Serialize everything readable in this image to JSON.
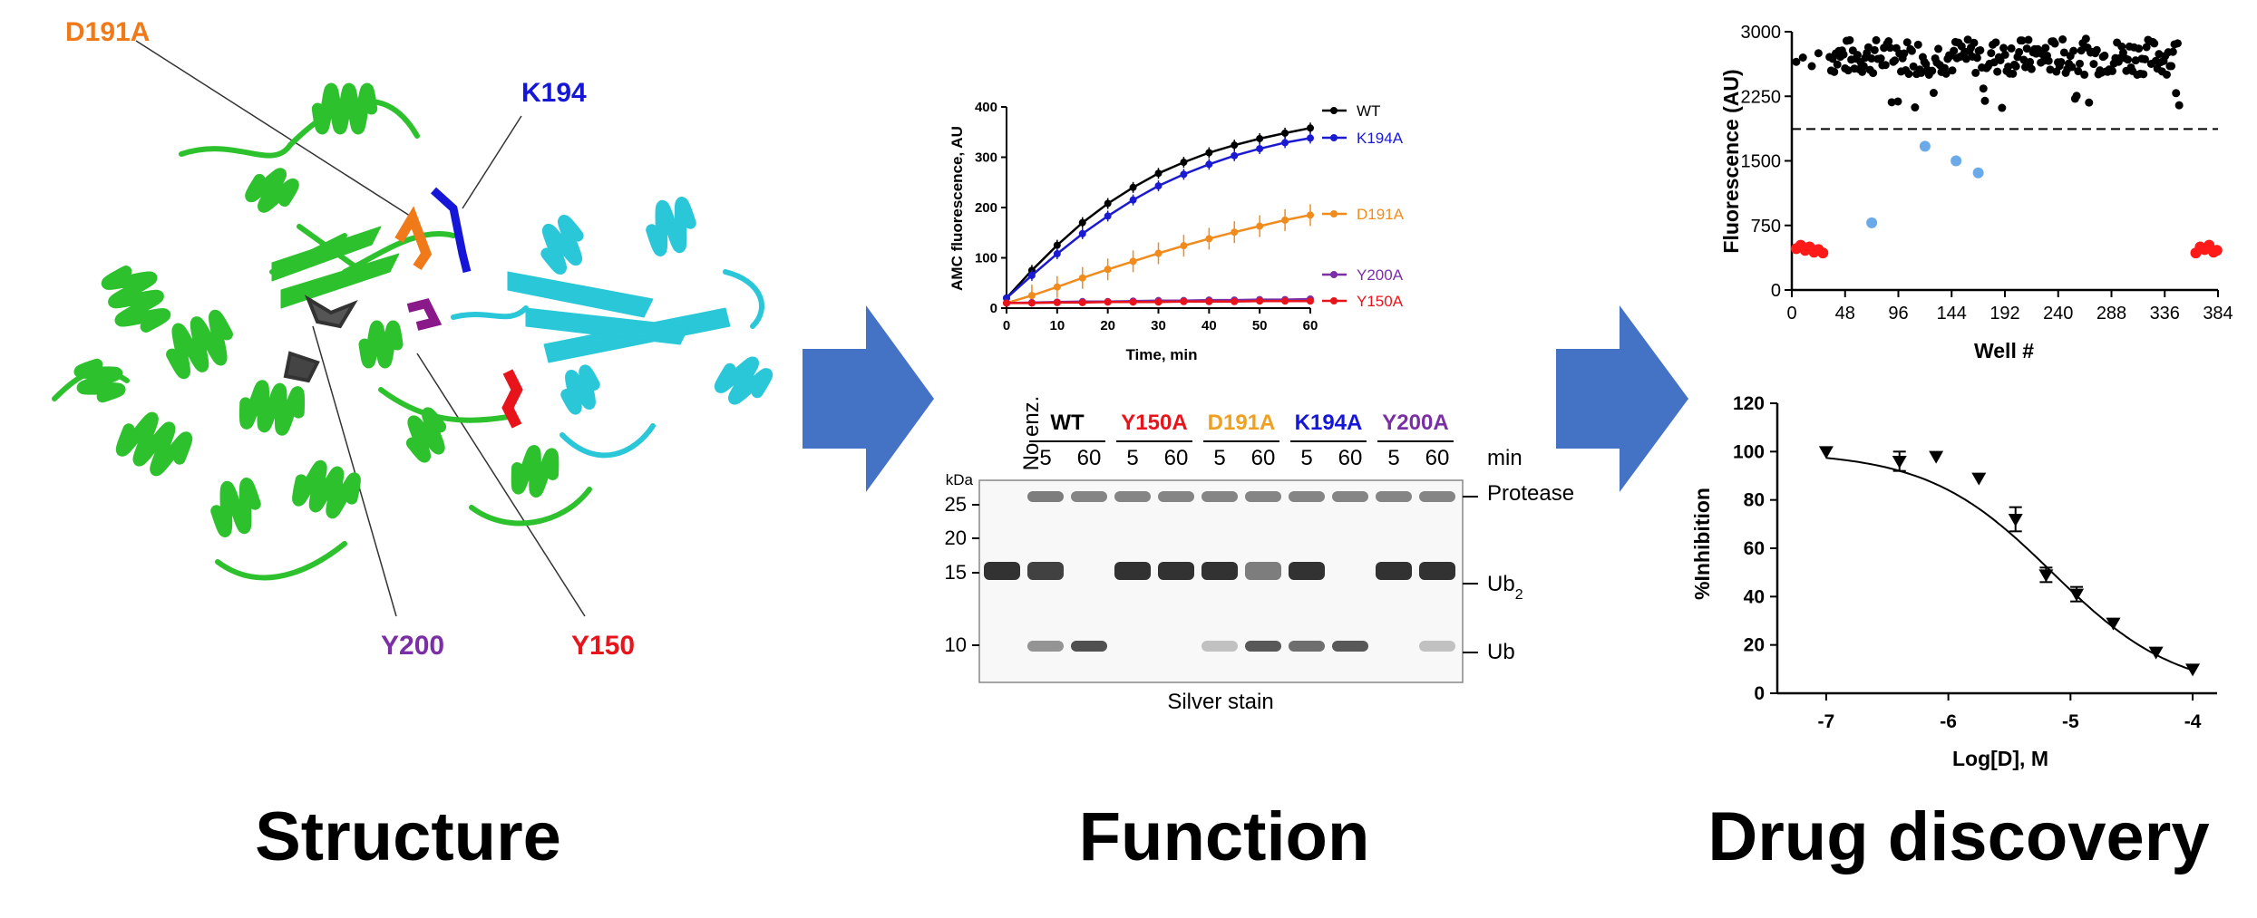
{
  "sections": {
    "structure": "Structure",
    "function": "Function",
    "drug": "Drug discovery"
  },
  "structure_panel": {
    "labels": [
      {
        "text": "D191A",
        "color": "#f07a1a"
      },
      {
        "text": "K194",
        "color": "#1616d8"
      },
      {
        "text": "Y200",
        "color": "#7b2fa6"
      },
      {
        "text": "Y150",
        "color": "#e8141c"
      }
    ],
    "ribbon_colors": {
      "domain_a": "#2ec12e",
      "domain_b": "#29c7d8"
    }
  },
  "arrow_color": "#4472c4",
  "gel": {
    "no_enzyme_label": "No enz.",
    "groups": [
      {
        "label": "WT",
        "color": "#000000"
      },
      {
        "label": "Y150A",
        "color": "#e8141c"
      },
      {
        "label": "D191A",
        "color": "#f0a020"
      },
      {
        "label": "K194A",
        "color": "#1616d8"
      },
      {
        "label": "Y200A",
        "color": "#7b2fa6"
      }
    ],
    "times": [
      "5",
      "60",
      "5",
      "60",
      "5",
      "60",
      "5",
      "60",
      "5",
      "60"
    ],
    "time_unit": "min",
    "kda_label": "kDa",
    "markers": [
      "25",
      "20",
      "15",
      "10"
    ],
    "bands": [
      "Protease",
      "Ub",
      "Ub"
    ],
    "band_subscript": "2",
    "caption": "Silver stain"
  },
  "chart_data": [
    {
      "type": "line",
      "xlabel": "Time, min",
      "ylabel": "AMC fluorescence, AU",
      "xlim": [
        0,
        60
      ],
      "ylim": [
        0,
        400
      ],
      "xticks": [
        "0",
        "10",
        "20",
        "30",
        "40",
        "50",
        "60"
      ],
      "yticks": [
        "0",
        "100",
        "200",
        "300",
        "400"
      ],
      "x": [
        0,
        5,
        10,
        15,
        20,
        25,
        30,
        35,
        40,
        45,
        50,
        55,
        60
      ],
      "series": [
        {
          "name": "WT",
          "color": "#000000",
          "values": [
            20,
            75,
            125,
            170,
            208,
            240,
            268,
            290,
            309,
            324,
            337,
            348,
            358
          ]
        },
        {
          "name": "K194A",
          "color": "#1a1ad0",
          "values": [
            20,
            65,
            108,
            148,
            183,
            215,
            243,
            266,
            286,
            303,
            317,
            329,
            338
          ]
        },
        {
          "name": "D191A",
          "color": "#f08c1e",
          "values": [
            10,
            25,
            42,
            60,
            77,
            93,
            109,
            124,
            138,
            151,
            163,
            175,
            185
          ]
        },
        {
          "name": "Y200A",
          "color": "#7b2fa6",
          "values": [
            10,
            11,
            12,
            13,
            13,
            14,
            15,
            15,
            16,
            16,
            17,
            17,
            18
          ]
        },
        {
          "name": "Y150A",
          "color": "#e8141c",
          "values": [
            10,
            10,
            11,
            11,
            12,
            12,
            12,
            13,
            13,
            13,
            14,
            14,
            14
          ]
        }
      ]
    },
    {
      "type": "scatter",
      "xlabel": "Well #",
      "ylabel": "Fluorescence (AU)",
      "xlim": [
        0,
        384
      ],
      "ylim": [
        0,
        3000
      ],
      "xticks": [
        "0",
        "48",
        "96",
        "144",
        "192",
        "240",
        "288",
        "336",
        "384"
      ],
      "yticks": [
        "0",
        "750",
        "1500",
        "2250",
        "3000"
      ],
      "threshold": 1870,
      "series": [
        {
          "name": "",
          "color": "#000000",
          "note": "screening wells, approx. 2500-2900 AU across wells 1-350"
        },
        {
          "name": "",
          "color": "#6aaae8",
          "points": [
            [
              72,
              780
            ],
            [
              120,
              1670
            ],
            [
              148,
              1500
            ],
            [
              168,
              1360
            ]
          ]
        },
        {
          "name": "",
          "color": "#ff1a1a",
          "points": [
            [
              4,
              480
            ],
            [
              8,
              520
            ],
            [
              12,
              460
            ],
            [
              16,
              500
            ],
            [
              20,
              440
            ],
            [
              24,
              470
            ],
            [
              28,
              430
            ],
            [
              364,
              430
            ],
            [
              368,
              500
            ],
            [
              372,
              470
            ],
            [
              376,
              520
            ],
            [
              380,
              440
            ],
            [
              383,
              460
            ]
          ]
        }
      ]
    },
    {
      "type": "scatter",
      "xlabel": "Log[D], M",
      "ylabel": "%Inhibition",
      "xlim": [
        -7.4,
        -3.8
      ],
      "ylim": [
        0,
        120
      ],
      "xticks": [
        "-7",
        "-6",
        "-5",
        "-4"
      ],
      "yticks": [
        "0",
        "20",
        "40",
        "60",
        "80",
        "100",
        "120"
      ],
      "points": [
        {
          "x": -7.0,
          "y": 100,
          "err": 0
        },
        {
          "x": -6.4,
          "y": 96,
          "err": 4
        },
        {
          "x": -6.1,
          "y": 98,
          "err": 0
        },
        {
          "x": -5.75,
          "y": 89,
          "err": 0
        },
        {
          "x": -5.45,
          "y": 72,
          "err": 5
        },
        {
          "x": -5.2,
          "y": 49,
          "err": 3
        },
        {
          "x": -4.95,
          "y": 41,
          "err": 3
        },
        {
          "x": -4.65,
          "y": 29,
          "err": 0
        },
        {
          "x": -4.3,
          "y": 17,
          "err": 0
        },
        {
          "x": -4.0,
          "y": 10,
          "err": 0
        }
      ],
      "fit": {
        "top": 100,
        "bottom": 0,
        "logIC50": -5.15,
        "hill": 0.85
      }
    }
  ]
}
